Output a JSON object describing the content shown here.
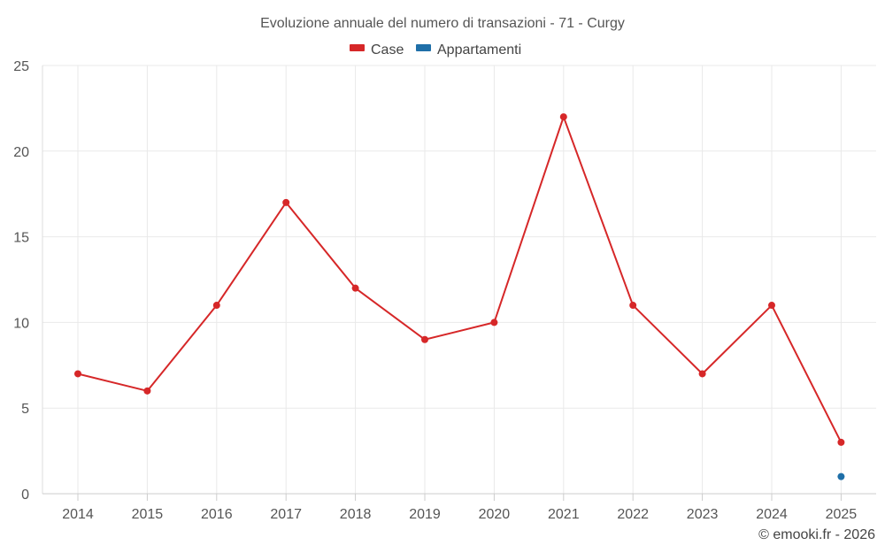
{
  "chart_data": {
    "type": "line",
    "title": "Evoluzione annuale del numero di transazioni - 71 - Curgy",
    "x": [
      "2014",
      "2015",
      "2016",
      "2017",
      "2018",
      "2019",
      "2020",
      "2021",
      "2022",
      "2023",
      "2024",
      "2025"
    ],
    "ylim": [
      0,
      25
    ],
    "yticks": [
      "0",
      "5",
      "10",
      "15",
      "20",
      "25"
    ],
    "grid": true,
    "legend_position": "top-center",
    "series": [
      {
        "name": "Case",
        "color": "#d62728",
        "values": [
          7,
          6,
          11,
          17,
          12,
          9,
          10,
          22,
          11,
          7,
          11,
          3
        ]
      },
      {
        "name": "Appartamenti",
        "color": "#1f6fa8",
        "values": [
          null,
          null,
          null,
          null,
          null,
          null,
          null,
          null,
          null,
          null,
          null,
          1
        ]
      }
    ]
  },
  "credit": "© emooki.fr - 2026"
}
